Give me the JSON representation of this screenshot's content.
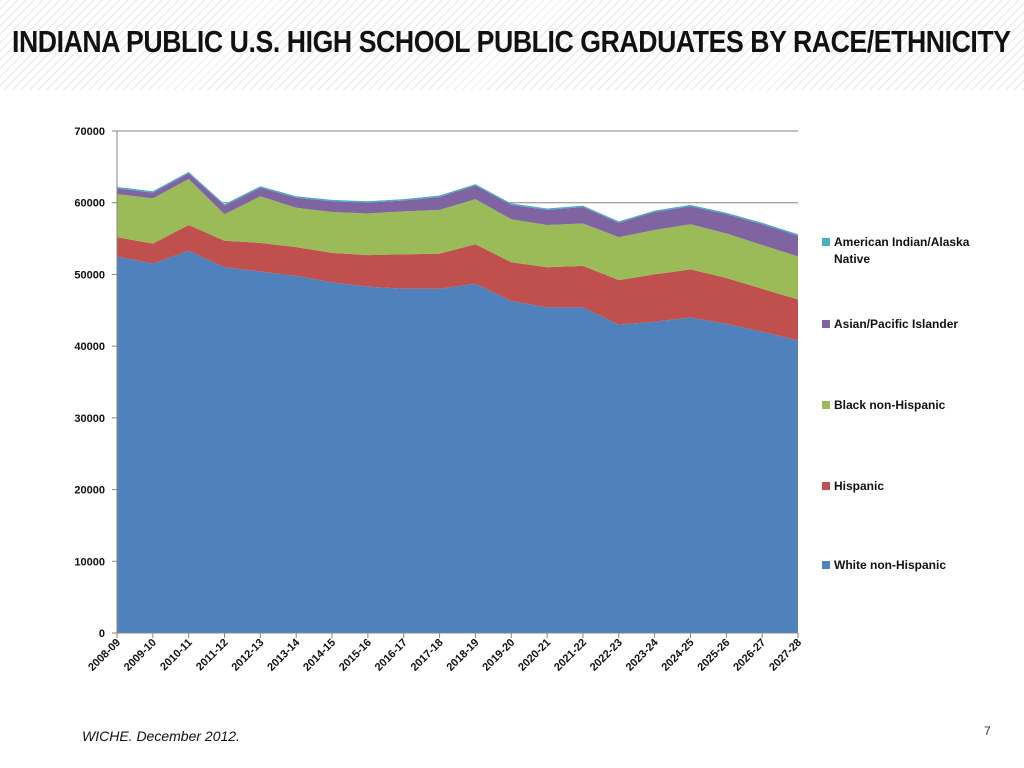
{
  "slide": {
    "title": "INDIANA PUBLIC U.S. HIGH SCHOOL PUBLIC GRADUATES BY RACE/ETHNICITY",
    "source": "WICHE. December 2012.",
    "page_number": "7"
  },
  "chart_data": {
    "type": "area",
    "stacked": true,
    "title": "",
    "xlabel": "",
    "ylabel": "",
    "ylim": [
      0,
      70000
    ],
    "yticks": [
      0,
      10000,
      20000,
      30000,
      40000,
      50000,
      60000,
      70000
    ],
    "grid": true,
    "legend_position": "right",
    "categories": [
      "2008-09",
      "2009-10",
      "2010-11",
      "2011-12",
      "2012-13",
      "2013-14",
      "2014-15",
      "2015-16",
      "2016-17",
      "2017-18",
      "2018-19",
      "2019-20",
      "2020-21",
      "2021-22",
      "2022-23",
      "2023-24",
      "2024-25",
      "2025-26",
      "2026-27",
      "2027-28"
    ],
    "series": [
      {
        "name": "White non-Hispanic",
        "color": "#4f81bd",
        "values": [
          52500,
          51500,
          53300,
          51000,
          50400,
          49800,
          48900,
          48300,
          48000,
          48000,
          48700,
          46300,
          45400,
          45400,
          43000,
          43400,
          44000,
          43100,
          42000,
          40800
        ]
      },
      {
        "name": "Hispanic",
        "color": "#c0504d",
        "values": [
          2700,
          2800,
          3600,
          3700,
          4000,
          4000,
          4100,
          4400,
          4800,
          4900,
          5500,
          5400,
          5600,
          5800,
          6200,
          6600,
          6700,
          6400,
          6000,
          5700
        ]
      },
      {
        "name": "Black non-Hispanic",
        "color": "#9bbb59",
        "values": [
          6000,
          6300,
          6400,
          3700,
          6500,
          5500,
          5700,
          5800,
          6000,
          6100,
          6300,
          6000,
          5900,
          5900,
          6000,
          6200,
          6300,
          6200,
          6100,
          6000
        ]
      },
      {
        "name": "Asian/Pacific Islander",
        "color": "#8064a2",
        "values": [
          800,
          800,
          800,
          1200,
          1200,
          1400,
          1500,
          1500,
          1500,
          1800,
          1900,
          2000,
          2100,
          2300,
          2000,
          2500,
          2500,
          2700,
          2900,
          2900
        ]
      },
      {
        "name": "American Indian/Alaska Native",
        "color": "#4bacc6",
        "values": [
          200,
          200,
          200,
          200,
          200,
          200,
          200,
          200,
          200,
          200,
          200,
          200,
          200,
          200,
          200,
          200,
          200,
          200,
          200,
          200
        ]
      }
    ]
  }
}
